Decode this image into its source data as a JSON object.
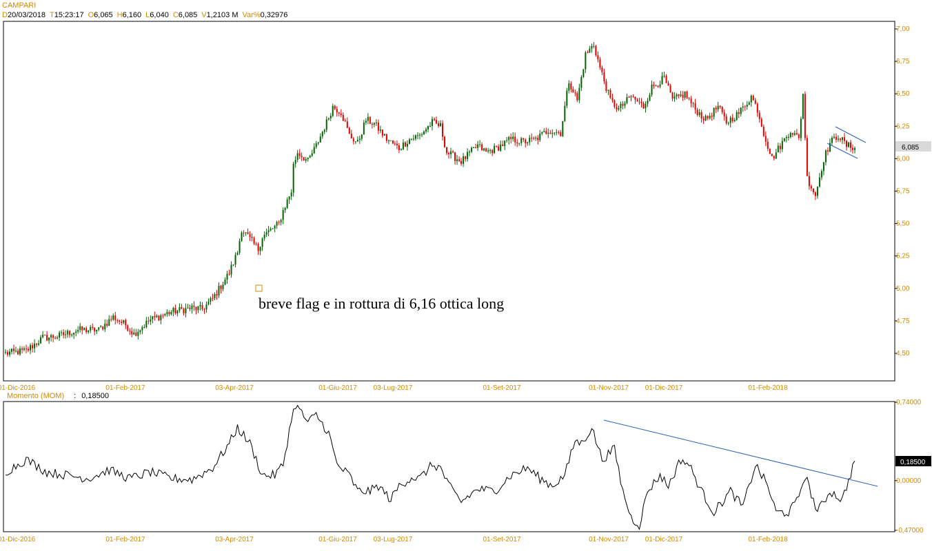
{
  "header": {
    "title": "CAMPARI",
    "fields": [
      {
        "k": "D",
        "v": "20/03/2018"
      },
      {
        "k": "T",
        "v": "15:23:17"
      },
      {
        "k": "O",
        "v": "6,065"
      },
      {
        "k": "H",
        "v": "6,160"
      },
      {
        "k": "L",
        "v": "6,040"
      },
      {
        "k": "C",
        "v": "6,085"
      },
      {
        "k": "V",
        "v": "1,2103 M"
      },
      {
        "k": "Var%",
        "v": "0,32976"
      }
    ]
  },
  "momentum": {
    "label": "Momento (MOM)",
    "value": "0,18500"
  },
  "colors": {
    "up": "#006400",
    "down": "#e00000",
    "axis": "#d08a00",
    "trendline": "#2a5fb5"
  },
  "chart_data": [
    {
      "type": "candlestick",
      "title": "CAMPARI",
      "y_ticks": [
        "4,50",
        "4,75",
        "5,00",
        "5,25",
        "5,50",
        "5,75",
        "6,00",
        "6,25",
        "6,50",
        "6,75",
        "7,00"
      ],
      "ylim": [
        4.3,
        7.05
      ],
      "x_ticks": [
        "01-Dic-2016",
        "01-Feb-2017",
        "03-Apr-2017",
        "01-Giu-2017",
        "03-Lug-2017",
        "01-Set-2017",
        "01-Nov-2017",
        "01-Dic-2017",
        "01-Feb-2018"
      ],
      "last_price_label": "6,085",
      "annotation": "breve flag e in rottura di 6,16 ottica long",
      "anchors": [
        [
          0,
          4.5
        ],
        [
          10,
          4.52
        ],
        [
          18,
          4.62
        ],
        [
          25,
          4.63
        ],
        [
          35,
          4.68
        ],
        [
          45,
          4.68
        ],
        [
          52,
          4.78
        ],
        [
          58,
          4.72
        ],
        [
          62,
          4.65
        ],
        [
          70,
          4.76
        ],
        [
          80,
          4.82
        ],
        [
          90,
          4.85
        ],
        [
          95,
          4.84
        ],
        [
          100,
          4.92
        ],
        [
          108,
          5.12
        ],
        [
          112,
          5.28
        ],
        [
          114,
          5.46
        ],
        [
          118,
          5.38
        ],
        [
          122,
          5.3
        ],
        [
          124,
          5.4
        ],
        [
          132,
          5.5
        ],
        [
          134,
          5.6
        ],
        [
          138,
          5.75
        ],
        [
          139,
          5.95
        ],
        [
          141,
          6.05
        ],
        [
          146,
          5.98
        ],
        [
          150,
          6.1
        ],
        [
          155,
          6.28
        ],
        [
          158,
          6.4
        ],
        [
          162,
          6.36
        ],
        [
          166,
          6.18
        ],
        [
          170,
          6.12
        ],
        [
          174,
          6.3
        ],
        [
          178,
          6.27
        ],
        [
          184,
          6.15
        ],
        [
          190,
          6.08
        ],
        [
          195,
          6.15
        ],
        [
          200,
          6.18
        ],
        [
          206,
          6.28
        ],
        [
          210,
          6.25
        ],
        [
          213,
          6.05
        ],
        [
          220,
          5.98
        ],
        [
          228,
          6.1
        ],
        [
          232,
          6.05
        ],
        [
          237,
          6.08
        ],
        [
          244,
          6.15
        ],
        [
          250,
          6.13
        ],
        [
          256,
          6.15
        ],
        [
          262,
          6.22
        ],
        [
          268,
          6.2
        ],
        [
          272,
          6.6
        ],
        [
          276,
          6.45
        ],
        [
          280,
          6.8
        ],
        [
          284,
          6.88
        ],
        [
          287,
          6.7
        ],
        [
          292,
          6.45
        ],
        [
          296,
          6.38
        ],
        [
          302,
          6.48
        ],
        [
          308,
          6.4
        ],
        [
          312,
          6.55
        ],
        [
          318,
          6.62
        ],
        [
          322,
          6.45
        ],
        [
          328,
          6.5
        ],
        [
          333,
          6.38
        ],
        [
          338,
          6.3
        ],
        [
          344,
          6.4
        ],
        [
          348,
          6.28
        ],
        [
          354,
          6.35
        ],
        [
          360,
          6.48
        ],
        [
          363,
          6.38
        ],
        [
          366,
          6.2
        ],
        [
          370,
          6.0
        ],
        [
          374,
          6.1
        ],
        [
          379,
          6.22
        ],
        [
          383,
          6.15
        ],
        [
          385,
          6.5
        ],
        [
          387,
          5.85
        ],
        [
          391,
          5.72
        ],
        [
          395,
          6.0
        ],
        [
          398,
          6.12
        ],
        [
          402,
          6.18
        ],
        [
          406,
          6.1
        ],
        [
          410,
          6.09
        ]
      ]
    },
    {
      "type": "line",
      "title": "Momento (MOM)",
      "y_ticks": [
        "0,74000",
        "0,18500",
        "0,00000",
        "-0,47000"
      ],
      "ylim": [
        -0.47,
        0.74
      ],
      "x_ticks": [
        "01-Dic-2016",
        "01-Feb-2017",
        "03-Apr-2017",
        "01-Giu-2017",
        "03-Lug-2017",
        "01-Set-2017",
        "01-Nov-2017",
        "01-Dic-2017",
        "01-Feb-2018"
      ],
      "last_value_label": "0,18500",
      "anchors": [
        [
          0,
          0.08
        ],
        [
          10,
          0.2
        ],
        [
          20,
          0.08
        ],
        [
          30,
          0.05
        ],
        [
          40,
          0.02
        ],
        [
          50,
          0.1
        ],
        [
          60,
          0.02
        ],
        [
          70,
          0.08
        ],
        [
          80,
          0.02
        ],
        [
          90,
          0.01
        ],
        [
          100,
          0.12
        ],
        [
          108,
          0.35
        ],
        [
          112,
          0.5
        ],
        [
          118,
          0.35
        ],
        [
          124,
          0.05
        ],
        [
          130,
          0.05
        ],
        [
          134,
          0.15
        ],
        [
          138,
          0.58
        ],
        [
          140,
          0.72
        ],
        [
          146,
          0.55
        ],
        [
          150,
          0.62
        ],
        [
          156,
          0.45
        ],
        [
          160,
          0.15
        ],
        [
          166,
          0.05
        ],
        [
          170,
          -0.1
        ],
        [
          176,
          -0.1
        ],
        [
          180,
          -0.05
        ],
        [
          186,
          -0.18
        ],
        [
          190,
          -0.05
        ],
        [
          196,
          0.03
        ],
        [
          200,
          0.02
        ],
        [
          206,
          0.15
        ],
        [
          210,
          0.12
        ],
        [
          214,
          -0.05
        ],
        [
          220,
          -0.2
        ],
        [
          228,
          -0.08
        ],
        [
          236,
          -0.1
        ],
        [
          244,
          0.05
        ],
        [
          252,
          0.12
        ],
        [
          258,
          0.02
        ],
        [
          264,
          -0.05
        ],
        [
          270,
          0.05
        ],
        [
          275,
          0.38
        ],
        [
          278,
          0.35
        ],
        [
          283,
          0.5
        ],
        [
          288,
          0.2
        ],
        [
          294,
          0.3
        ],
        [
          298,
          -0.1
        ],
        [
          302,
          -0.35
        ],
        [
          306,
          -0.42
        ],
        [
          310,
          -0.1
        ],
        [
          316,
          0.05
        ],
        [
          320,
          -0.05
        ],
        [
          326,
          0.2
        ],
        [
          330,
          0.15
        ],
        [
          336,
          -0.1
        ],
        [
          342,
          -0.3
        ],
        [
          350,
          -0.1
        ],
        [
          356,
          -0.25
        ],
        [
          362,
          0.15
        ],
        [
          368,
          -0.05
        ],
        [
          372,
          -0.3
        ],
        [
          378,
          -0.3
        ],
        [
          382,
          -0.2
        ],
        [
          386,
          0.05
        ],
        [
          392,
          -0.3
        ],
        [
          398,
          -0.1
        ],
        [
          404,
          -0.18
        ],
        [
          410,
          0.185
        ]
      ]
    }
  ]
}
